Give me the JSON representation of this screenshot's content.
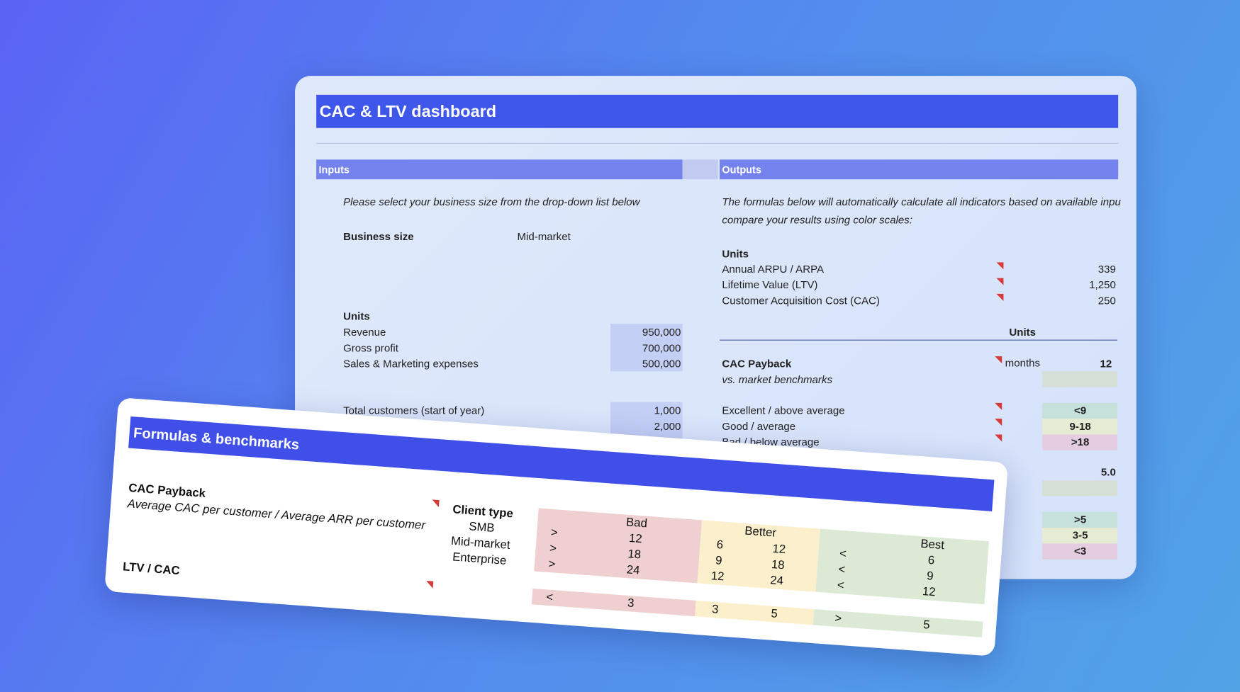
{
  "dashboard": {
    "title": "CAC & LTV dashboard",
    "inputs_header": "Inputs",
    "outputs_header": "Outputs",
    "inputs": {
      "instruction": "Please select your business size from the drop-down list below",
      "business_size_label": "Business size",
      "business_size_value": "Mid-market",
      "units_label": "Units",
      "rows": [
        {
          "label": "Revenue",
          "value": "950,000"
        },
        {
          "label": "Gross profit",
          "value": "700,000"
        },
        {
          "label": "Sales & Marketing expenses",
          "value": "500,000"
        }
      ],
      "customers_label": "Total customers (start of year)",
      "customer_values": [
        "1,000",
        "2,000"
      ]
    },
    "outputs": {
      "instruction_line1": "The formulas below will automatically calculate all indicators based on available inpu",
      "instruction_line2": "compare your results using color scales:",
      "units_label": "Units",
      "metrics": [
        {
          "label": "Annual ARPU / ARPA",
          "value": "339"
        },
        {
          "label": "Lifetime Value (LTV)",
          "value": "1,250"
        },
        {
          "label": "Customer Acquisition Cost (CAC)",
          "value": "250"
        }
      ],
      "units_header": "Units",
      "cac_payback_label": "CAC Payback",
      "cac_payback_unit": "months",
      "cac_payback_value": "12",
      "benchmark_note": "vs. market benchmarks",
      "benchmarks": [
        {
          "label": "Excellent / above average",
          "value": "<9"
        },
        {
          "label": "Good / average",
          "value": "9-18"
        },
        {
          "label": "Bad / below average",
          "value": ">18"
        }
      ],
      "ltv_cac_value": "5.0",
      "ltv_cac_benchmarks": [
        ">5",
        "3-5",
        "<3"
      ]
    }
  },
  "formulas": {
    "title": "Formulas & benchmarks",
    "cac_payback_label": "CAC Payback",
    "cac_payback_formula": "Average CAC per customer / Average ARR per customer",
    "ltv_cac_label": "LTV / CAC",
    "client_type_header": "Client type",
    "columns": [
      "Bad",
      "Better",
      "Best"
    ],
    "rows": [
      {
        "client": "SMB",
        "bad": [
          ">",
          "12"
        ],
        "better": [
          "6",
          "12"
        ],
        "best": [
          "<",
          "6"
        ]
      },
      {
        "client": "Mid-market",
        "bad": [
          ">",
          "18"
        ],
        "better": [
          "9",
          "18"
        ],
        "best": [
          "<",
          "9"
        ]
      },
      {
        "client": "Enterprise",
        "bad": [
          ">",
          "24"
        ],
        "better": [
          "12",
          "24"
        ],
        "best": [
          "<",
          "12"
        ]
      }
    ],
    "ltv_row": {
      "bad": [
        "<",
        "3"
      ],
      "better": [
        "3",
        "5"
      ],
      "best": [
        ">",
        "5"
      ]
    }
  }
}
